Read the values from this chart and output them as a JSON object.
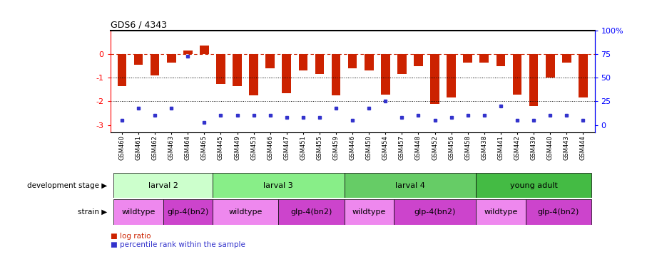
{
  "title": "GDS6 / 4343",
  "samples": [
    "GSM460",
    "GSM461",
    "GSM462",
    "GSM463",
    "GSM464",
    "GSM465",
    "GSM445",
    "GSM449",
    "GSM453",
    "GSM466",
    "GSM447",
    "GSM451",
    "GSM455",
    "GSM459",
    "GSM446",
    "GSM450",
    "GSM454",
    "GSM457",
    "GSM448",
    "GSM452",
    "GSM456",
    "GSM458",
    "GSM438",
    "GSM441",
    "GSM442",
    "GSM439",
    "GSM440",
    "GSM443",
    "GSM444"
  ],
  "log_ratios": [
    -1.35,
    -0.45,
    -0.9,
    -0.35,
    0.15,
    0.35,
    -1.25,
    -1.35,
    -1.75,
    -0.6,
    -1.65,
    -0.7,
    -0.85,
    -1.75,
    -0.6,
    -0.7,
    -1.7,
    -0.85,
    -0.5,
    -2.1,
    -1.85,
    -0.35,
    -0.35,
    -0.5,
    -1.7,
    -2.2,
    -1.0,
    -0.35,
    -1.85
  ],
  "percentile_ranks": [
    5,
    18,
    10,
    18,
    73,
    3,
    10,
    10,
    10,
    10,
    8,
    8,
    8,
    18,
    5,
    18,
    25,
    8,
    10,
    5,
    8,
    10,
    10,
    20,
    5,
    5,
    10,
    10,
    5
  ],
  "bar_color": "#cc2200",
  "dot_color": "#3333cc",
  "development_stages": [
    {
      "label": "larval 2",
      "start": 0,
      "end": 6,
      "color": "#ccffcc"
    },
    {
      "label": "larval 3",
      "start": 6,
      "end": 14,
      "color": "#88ee88"
    },
    {
      "label": "larval 4",
      "start": 14,
      "end": 22,
      "color": "#66cc66"
    },
    {
      "label": "young adult",
      "start": 22,
      "end": 29,
      "color": "#44bb44"
    }
  ],
  "strains": [
    {
      "label": "wildtype",
      "start": 0,
      "end": 3,
      "color": "#ee88ee"
    },
    {
      "label": "glp-4(bn2)",
      "start": 3,
      "end": 6,
      "color": "#cc44cc"
    },
    {
      "label": "wildtype",
      "start": 6,
      "end": 10,
      "color": "#ee88ee"
    },
    {
      "label": "glp-4(bn2)",
      "start": 10,
      "end": 14,
      "color": "#cc44cc"
    },
    {
      "label": "wildtype",
      "start": 14,
      "end": 17,
      "color": "#ee88ee"
    },
    {
      "label": "glp-4(bn2)",
      "start": 17,
      "end": 22,
      "color": "#cc44cc"
    },
    {
      "label": "wildtype",
      "start": 22,
      "end": 25,
      "color": "#ee88ee"
    },
    {
      "label": "glp-4(bn2)",
      "start": 25,
      "end": 29,
      "color": "#cc44cc"
    }
  ],
  "ylim": [
    -3.3,
    1.0
  ],
  "yticks": [
    0,
    -1,
    -2,
    -3
  ],
  "left_label_stage": "development stage",
  "left_label_strain": "strain",
  "legend_items": [
    {
      "color": "#cc2200",
      "label": "log ratio"
    },
    {
      "color": "#3333cc",
      "label": "percentile rank within the sample"
    }
  ]
}
